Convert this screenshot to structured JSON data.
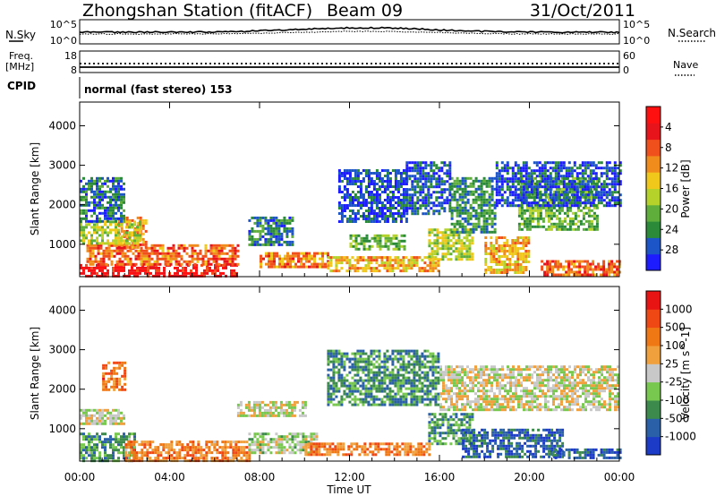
{
  "header": {
    "station": "Zhongshan Station (fitACF)",
    "beam": "Beam 09",
    "date": "31/Oct/2011"
  },
  "top_panel": {
    "left_label": "N.Sky",
    "right_label": "N.Search",
    "y_ticks_left": [
      "10^5",
      "10^0"
    ],
    "y_ticks_right": [
      "10^5",
      "10^0"
    ]
  },
  "freq_panel": {
    "left_label_1": "Freq.",
    "left_label_2": "[MHz]",
    "right_label": "Nave",
    "y_ticks_left": [
      "18",
      "8"
    ],
    "y_ticks_right": [
      "60",
      "0"
    ]
  },
  "cpid": {
    "label": "CPID",
    "text": "normal (fast stereo) 153"
  },
  "x_axis": {
    "label": "Time UT",
    "ticks": [
      "00:00",
      "04:00",
      "08:00",
      "12:00",
      "16:00",
      "20:00",
      "00:00"
    ]
  },
  "chart_data": [
    {
      "type": "heatmap",
      "name": "power",
      "ylabel": "Slant Range [km]",
      "y_ticks": [
        1000,
        2000,
        3000,
        4000
      ],
      "ylim": [
        180,
        4600
      ],
      "xlim": [
        0,
        24
      ],
      "colorbar_label": "Power [dB]",
      "colorbar_ticks": [
        "4",
        "8",
        "12",
        "16",
        "20",
        "24",
        "28"
      ],
      "colorbar_colors": [
        "#1c1cff",
        "#1c55c8",
        "#2a8a3a",
        "#5fae3c",
        "#b4d22a",
        "#f0c81c",
        "#f08c1c",
        "#f0501c",
        "#e8141c",
        "#ff1010"
      ],
      "regions": [
        {
          "t": [
            0.0,
            7.0
          ],
          "r": [
            200,
            500
          ],
          "level": 0.9
        },
        {
          "t": [
            0.3,
            7.0
          ],
          "r": [
            500,
            1000
          ],
          "level": 0.72
        },
        {
          "t": [
            1.7,
            3.0
          ],
          "r": [
            900,
            1700
          ],
          "level": 0.68
        },
        {
          "t": [
            0.0,
            2.7
          ],
          "r": [
            1000,
            1600
          ],
          "level": 0.45
        },
        {
          "t": [
            0.0,
            2.0
          ],
          "r": [
            1600,
            2700
          ],
          "level": 0.2
        },
        {
          "t": [
            7.5,
            9.5
          ],
          "r": [
            1000,
            1700
          ],
          "level": 0.22
        },
        {
          "t": [
            8.0,
            11.0
          ],
          "r": [
            400,
            800
          ],
          "level": 0.68
        },
        {
          "t": [
            11.0,
            16.0
          ],
          "r": [
            350,
            700
          ],
          "level": 0.6
        },
        {
          "t": [
            12.0,
            14.5
          ],
          "r": [
            850,
            1250
          ],
          "level": 0.35
        },
        {
          "t": [
            15.5,
            17.5
          ],
          "r": [
            600,
            1400
          ],
          "level": 0.45
        },
        {
          "t": [
            16.5,
            18.5
          ],
          "r": [
            1300,
            2700
          ],
          "level": 0.25
        },
        {
          "t": [
            18.0,
            20.0
          ],
          "r": [
            300,
            1200
          ],
          "level": 0.6
        },
        {
          "t": [
            19.5,
            23.0
          ],
          "r": [
            1400,
            2700
          ],
          "level": 0.35
        },
        {
          "t": [
            20.5,
            24.0
          ],
          "r": [
            200,
            600
          ],
          "level": 0.72
        },
        {
          "t": [
            11.5,
            14.5
          ],
          "r": [
            1600,
            2900
          ],
          "level": 0.14
        },
        {
          "t": [
            14.5,
            16.5
          ],
          "r": [
            1800,
            3100
          ],
          "level": 0.14
        },
        {
          "t": [
            18.5,
            24.0
          ],
          "r": [
            2000,
            3100
          ],
          "level": 0.14
        }
      ]
    },
    {
      "type": "heatmap",
      "name": "velocity",
      "ylabel": "Slant Range [km]",
      "y_ticks": [
        1000,
        2000,
        3000,
        4000
      ],
      "ylim": [
        180,
        4600
      ],
      "xlim": [
        0,
        24
      ],
      "colorbar_label": "Velocity [m s^-1]",
      "colorbar_ticks": [
        "1000",
        "500",
        "100",
        "25",
        "-25",
        "-100",
        "-500",
        "-1000"
      ],
      "colorbar_colors": [
        "#1c3cc8",
        "#2a60a8",
        "#3c8a4c",
        "#78c850",
        "#c8c8c8",
        "#f0a03c",
        "#f07814",
        "#f04814",
        "#e81414"
      ],
      "regions": [
        {
          "t": [
            0.0,
            2.5
          ],
          "r": [
            200,
            900
          ],
          "level": 0.3
        },
        {
          "t": [
            2.0,
            7.5
          ],
          "r": [
            200,
            700
          ],
          "level": 0.7
        },
        {
          "t": [
            7.5,
            10.5
          ],
          "r": [
            400,
            900
          ],
          "level": 0.45
        },
        {
          "t": [
            10.0,
            15.5
          ],
          "r": [
            350,
            650
          ],
          "level": 0.72
        },
        {
          "t": [
            0.0,
            2.0
          ],
          "r": [
            1100,
            1500
          ],
          "level": 0.5
        },
        {
          "t": [
            7.0,
            10.0
          ],
          "r": [
            1300,
            1700
          ],
          "level": 0.5
        },
        {
          "t": [
            11.0,
            16.0
          ],
          "r": [
            1600,
            3000
          ],
          "level": 0.27
        },
        {
          "t": [
            15.5,
            17.5
          ],
          "r": [
            600,
            1400
          ],
          "level": 0.3
        },
        {
          "t": [
            16.0,
            24.0
          ],
          "r": [
            1500,
            2600
          ],
          "level": 0.5
        },
        {
          "t": [
            17.0,
            21.5
          ],
          "r": [
            300,
            1000
          ],
          "level": 0.15
        },
        {
          "t": [
            21.0,
            24.0
          ],
          "r": [
            250,
            500
          ],
          "level": 0.15
        },
        {
          "t": [
            1.0,
            2.0
          ],
          "r": [
            2000,
            2700
          ],
          "level": 0.75
        }
      ]
    }
  ]
}
